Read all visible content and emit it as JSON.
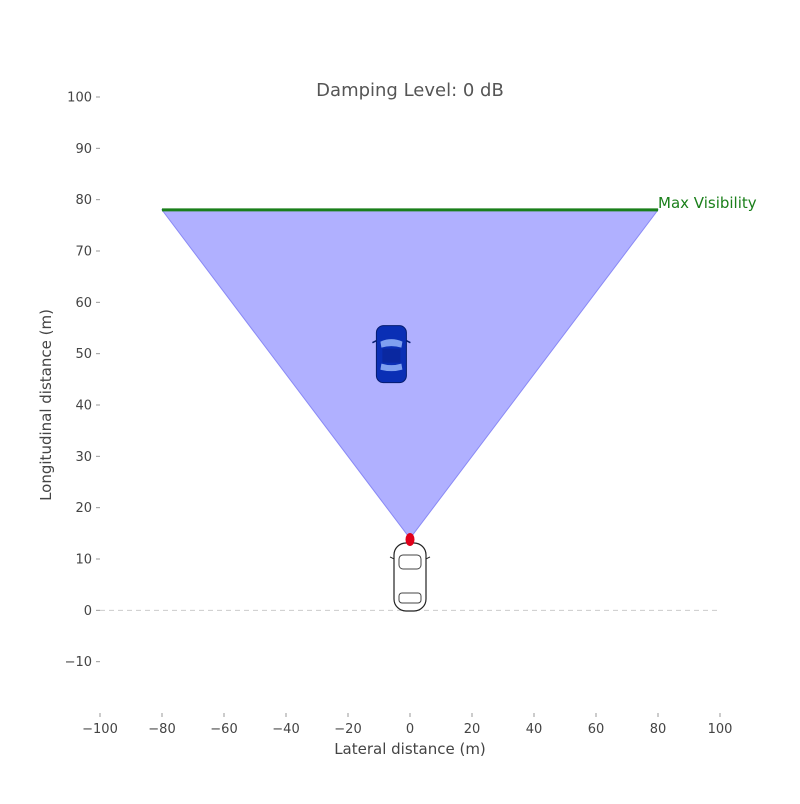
{
  "chart_data": {
    "type": "area",
    "title": "Damping Level: 0 dB",
    "xlabel": "Lateral distance (m)",
    "ylabel": "Longitudinal distance (m)",
    "xlim": [
      -100,
      100
    ],
    "ylim": [
      -20,
      100
    ],
    "x_ticks": [
      "−100",
      "−80",
      "−60",
      "−40",
      "−20",
      "0",
      "20",
      "40",
      "60",
      "80",
      "100"
    ],
    "x_tick_values": [
      -100,
      -80,
      -60,
      -40,
      -20,
      0,
      20,
      40,
      60,
      80,
      100
    ],
    "y_ticks": [
      "−10",
      "0",
      "10",
      "20",
      "30",
      "40",
      "50",
      "60",
      "70",
      "80",
      "90",
      "100"
    ],
    "y_tick_values": [
      -10,
      0,
      10,
      20,
      30,
      40,
      50,
      60,
      70,
      80,
      90,
      100
    ],
    "grid": false,
    "visibility_cone": {
      "points": [
        [
          0,
          14
        ],
        [
          -80,
          78
        ],
        [
          80,
          78
        ]
      ],
      "color": "#b0b0ff"
    },
    "max_visibility": {
      "label": "Max Visibility",
      "y": 78,
      "x_range": [
        -80,
        80
      ],
      "color": "#1a7f1a"
    },
    "sensor": {
      "x": 0,
      "y": 14,
      "color": "#e0001a"
    },
    "ego_vehicle": {
      "x": 0,
      "y": 6.5,
      "icon": "car-outline-icon"
    },
    "target_vehicle": {
      "x": -6,
      "y": 50,
      "icon": "blue-car-icon",
      "color": "#0a2fb5"
    },
    "baseline": {
      "y": 0
    }
  }
}
